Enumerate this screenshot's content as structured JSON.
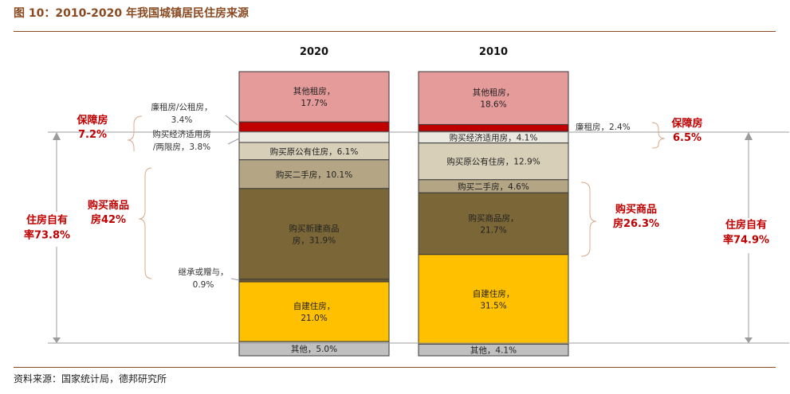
{
  "title": "图 10：2010-2020 年我国城镇居民住房来源",
  "source": "资料来源：国家统计局，德邦研究所",
  "chart_data": {
    "type": "bar",
    "stacked": true,
    "unit": "%",
    "categories": [
      "2020",
      "2010"
    ],
    "series": [
      {
        "name": "其他租房",
        "values": [
          17.7,
          18.6
        ],
        "color": "#e69b9b",
        "labels": [
          "其他租房，|17.7%",
          "其他租房，|18.6%"
        ]
      },
      {
        "name": "廉租房/公租房",
        "values": [
          3.4,
          2.4
        ],
        "color": "#c00000",
        "labels": [
          "",
          ""
        ]
      },
      {
        "name": "购买经济适用房/两限房",
        "values": [
          3.8,
          4.1
        ],
        "color": "#ebe8df",
        "labels": [
          "",
          "购买经济适用房，4.1%"
        ]
      },
      {
        "name": "购买原公有住房",
        "values": [
          6.1,
          12.9
        ],
        "color": "#d8cfb9",
        "labels": [
          "购买原公有住房，6.1%",
          "购买原公有住房，12.9%"
        ]
      },
      {
        "name": "购买二手房",
        "values": [
          10.1,
          4.6
        ],
        "color": "#b4a685",
        "labels": [
          "购买二手房，10.1%",
          "购买二手房，4.6%"
        ]
      },
      {
        "name": "购买新建商品房",
        "values": [
          31.9,
          21.7
        ],
        "color": "#7a6636",
        "labels": [
          "购买新建商品|房，31.9%",
          "购买商品房，|21.7%"
        ]
      },
      {
        "name": "继承或赠与",
        "values": [
          0.9,
          0
        ],
        "color": "#6b5830",
        "labels": [
          "",
          ""
        ]
      },
      {
        "name": "自建住房",
        "values": [
          21.0,
          31.5
        ],
        "color": "#ffc000",
        "labels": [
          "自建住房，|21.0%",
          "自建住房，|31.5%"
        ]
      },
      {
        "name": "其他",
        "values": [
          5.0,
          4.1
        ],
        "color": "#c0c0c0",
        "labels": [
          "其他，5.0%",
          "其他，4.1%"
        ]
      }
    ],
    "annotations_2020": {
      "lianzu": "廉租房/公租房，|3.4%",
      "jingshi": "购买经济适用房|/两限房，3.8%",
      "jicheng": "继承或赠与，|0.9%",
      "baozhang": "保障房|7.2%",
      "shangpin": "购买商品|房42%",
      "ziyou": "住房自有|率73.8%"
    },
    "annotations_2010": {
      "lianzu": "廉租房，2.4%",
      "baozhang": "保障房|6.5%",
      "shangpin": "购买商品|房26.3%",
      "ziyou": "住房自有|率74.9%"
    }
  }
}
